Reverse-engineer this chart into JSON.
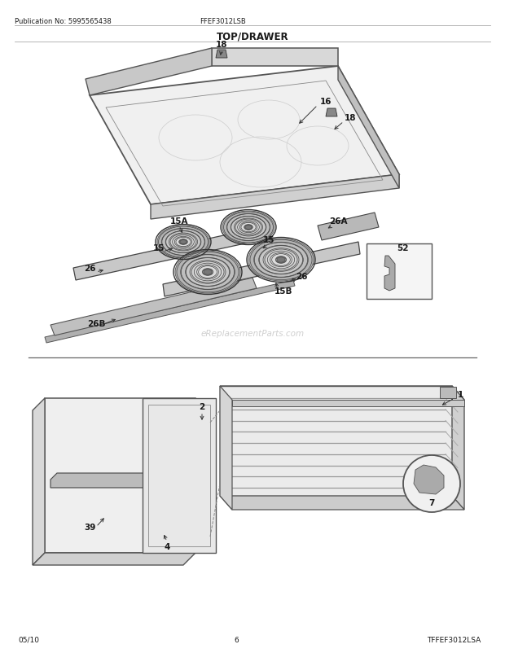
{
  "title": "TOP/DRAWER",
  "pub_no": "Publication No: 5995565438",
  "model": "FFEF3012LSB",
  "diagram_code": "TFFEF3012LSA",
  "date": "05/10",
  "page": "6",
  "bg_color": "#ffffff",
  "text_color": "#1a1a1a",
  "fig_width": 6.2,
  "fig_height": 8.03,
  "watermark": "eReplacementParts.com"
}
